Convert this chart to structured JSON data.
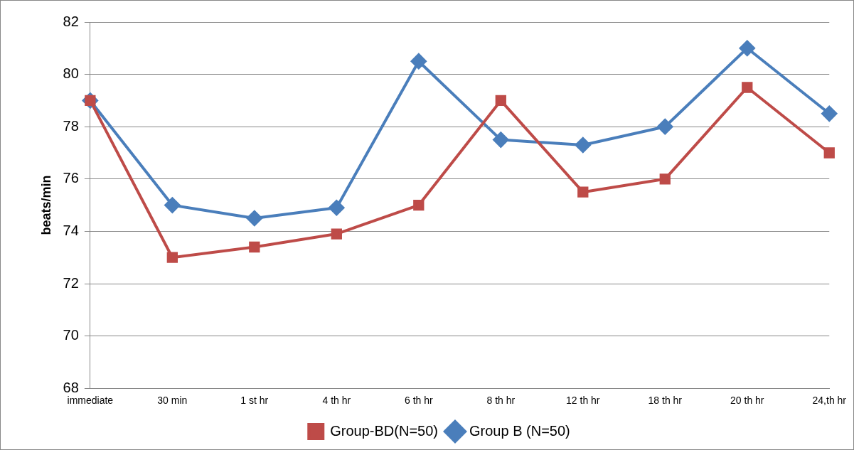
{
  "chart_data": {
    "type": "line",
    "ylabel": "beats/min",
    "categories": [
      "immediate",
      "30 min",
      "1 st hr",
      "4 th hr",
      "6 th hr",
      "8 th hr",
      "12 th hr",
      "18 th hr",
      "20 th hr",
      "24,th hr"
    ],
    "series": [
      {
        "name": "Group B (N=50)",
        "color": "#4a7ebb",
        "marker": "diamond",
        "values": [
          79,
          75,
          74.5,
          74.9,
          80.5,
          77.5,
          77.3,
          78,
          81,
          78.5
        ]
      },
      {
        "name": "Group-BD(N=50)",
        "color": "#be4b48",
        "marker": "square",
        "values": [
          79,
          73,
          73.4,
          73.9,
          75,
          79,
          75.5,
          76,
          79.5,
          77
        ]
      }
    ],
    "ylim": [
      68,
      82
    ],
    "yticks": [
      68,
      70,
      72,
      74,
      76,
      78,
      80,
      82
    ],
    "grid": "y",
    "legend": "bottom",
    "line_style": "solid"
  }
}
